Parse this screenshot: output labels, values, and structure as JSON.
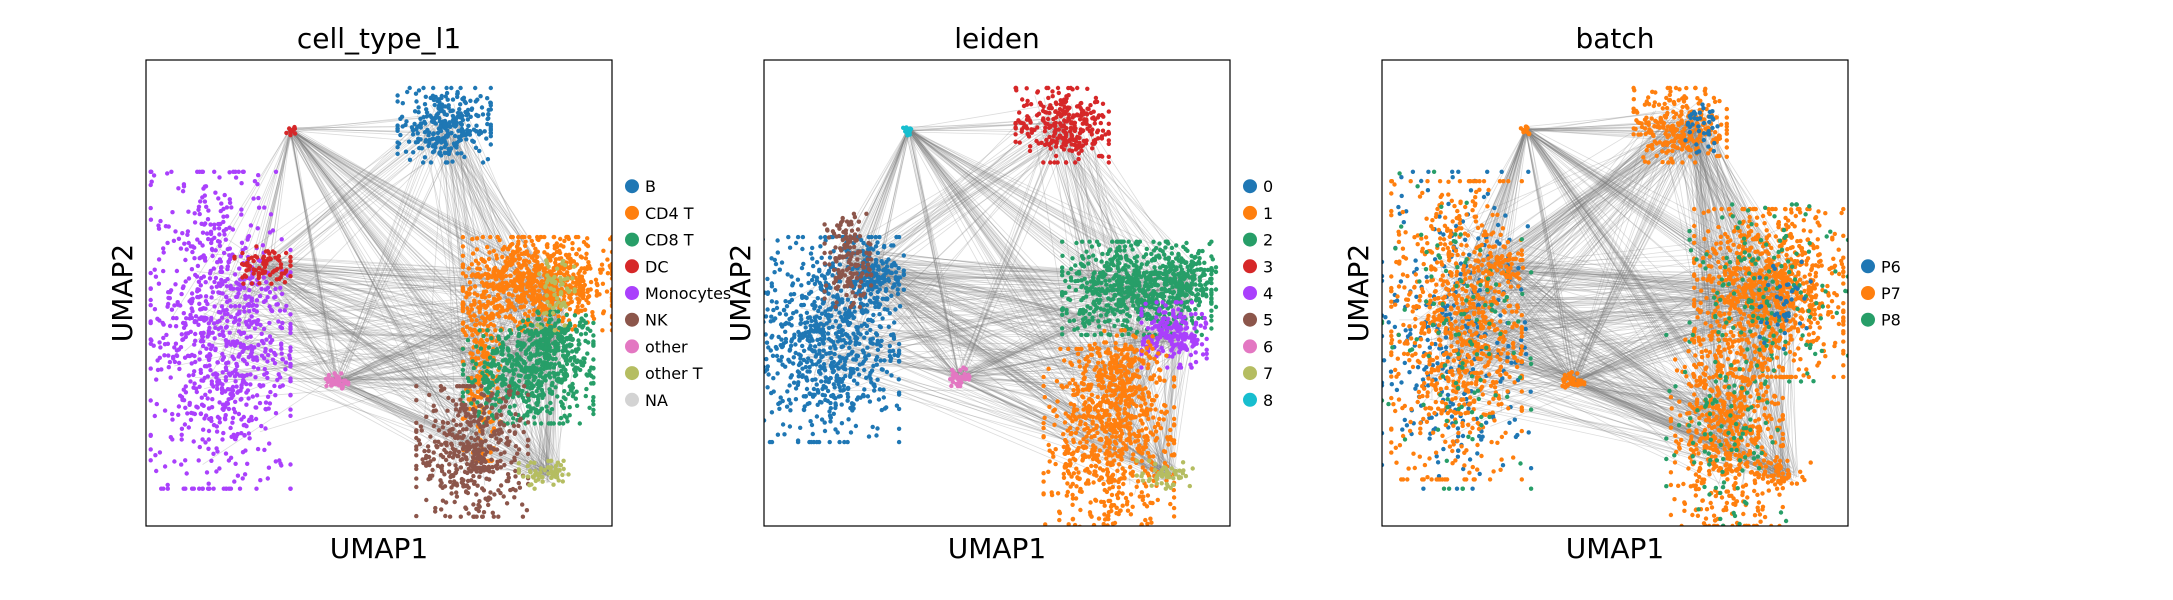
{
  "chart_data": [
    {
      "type": "scatter",
      "title": "cell_type_l1",
      "xlabel": "UMAP1",
      "ylabel": "UMAP2",
      "legend": [
        {
          "label": "B",
          "color": "#1f77b4"
        },
        {
          "label": "CD4 T",
          "color": "#ff7f0e"
        },
        {
          "label": "CD8 T",
          "color": "#279e68"
        },
        {
          "label": "DC",
          "color": "#d62728"
        },
        {
          "label": "Monocytes",
          "color": "#aa40fc"
        },
        {
          "label": "NK",
          "color": "#8c564b"
        },
        {
          "label": "other",
          "color": "#e377c2"
        },
        {
          "label": "other T",
          "color": "#b5bd61"
        },
        {
          "label": "NA",
          "color": "#d3d3d3"
        }
      ],
      "legend_placement": "right",
      "clusters": [
        {
          "label": "B",
          "color": "#1f77b4",
          "x": 0.64,
          "y": 0.86,
          "rx": 0.05,
          "ry": 0.04,
          "n": 300
        },
        {
          "label": "Monocytes",
          "color": "#aa40fc",
          "x": 0.16,
          "y": 0.42,
          "rx": 0.075,
          "ry": 0.17,
          "n": 900
        },
        {
          "label": "DC",
          "color": "#d62728",
          "x": 0.25,
          "y": 0.56,
          "rx": 0.03,
          "ry": 0.02,
          "n": 80
        },
        {
          "label": "DC",
          "color": "#d62728",
          "x": 0.31,
          "y": 0.85,
          "rx": 0.006,
          "ry": 0.006,
          "n": 12
        },
        {
          "label": "other",
          "color": "#e377c2",
          "x": 0.41,
          "y": 0.31,
          "rx": 0.012,
          "ry": 0.01,
          "n": 40
        },
        {
          "label": "CD4 T",
          "color": "#ff7f0e",
          "x": 0.84,
          "y": 0.52,
          "rx": 0.08,
          "ry": 0.05,
          "n": 800
        },
        {
          "label": "CD4 T",
          "color": "#ff7f0e",
          "x": 0.72,
          "y": 0.34,
          "rx": 0.02,
          "ry": 0.1,
          "n": 200
        },
        {
          "label": "CD8 T",
          "color": "#279e68",
          "x": 0.82,
          "y": 0.32,
          "rx": 0.07,
          "ry": 0.05,
          "n": 500
        },
        {
          "label": "CD8 T",
          "color": "#279e68",
          "x": 0.88,
          "y": 0.4,
          "rx": 0.04,
          "ry": 0.03,
          "n": 200
        },
        {
          "label": "NK",
          "color": "#8c564b",
          "x": 0.7,
          "y": 0.16,
          "rx": 0.06,
          "ry": 0.07,
          "n": 450
        },
        {
          "label": "other T",
          "color": "#b5bd61",
          "x": 0.86,
          "y": 0.11,
          "rx": 0.03,
          "ry": 0.015,
          "n": 60
        },
        {
          "label": "other T",
          "color": "#b5bd61",
          "x": 0.88,
          "y": 0.5,
          "rx": 0.02,
          "ry": 0.04,
          "n": 60
        }
      ]
    },
    {
      "type": "scatter",
      "title": "leiden",
      "xlabel": "UMAP1",
      "ylabel": "UMAP2",
      "legend": [
        {
          "label": "0",
          "color": "#1f77b4"
        },
        {
          "label": "1",
          "color": "#ff7f0e"
        },
        {
          "label": "2",
          "color": "#279e68"
        },
        {
          "label": "3",
          "color": "#d62728"
        },
        {
          "label": "4",
          "color": "#aa40fc"
        },
        {
          "label": "5",
          "color": "#8c564b"
        },
        {
          "label": "6",
          "color": "#e377c2"
        },
        {
          "label": "7",
          "color": "#b5bd61"
        },
        {
          "label": "8",
          "color": "#17becf"
        }
      ],
      "legend_placement": "right",
      "clusters": [
        {
          "label": "0",
          "color": "#1f77b4",
          "x": 0.14,
          "y": 0.4,
          "rx": 0.075,
          "ry": 0.11,
          "n": 800
        },
        {
          "label": "0",
          "color": "#1f77b4",
          "x": 0.24,
          "y": 0.54,
          "rx": 0.03,
          "ry": 0.04,
          "n": 150
        },
        {
          "label": "5",
          "color": "#8c564b",
          "x": 0.18,
          "y": 0.57,
          "rx": 0.025,
          "ry": 0.05,
          "n": 150
        },
        {
          "label": "3",
          "color": "#d62728",
          "x": 0.64,
          "y": 0.86,
          "rx": 0.05,
          "ry": 0.04,
          "n": 300
        },
        {
          "label": "8",
          "color": "#17becf",
          "x": 0.31,
          "y": 0.85,
          "rx": 0.006,
          "ry": 0.006,
          "n": 12
        },
        {
          "label": "6",
          "color": "#e377c2",
          "x": 0.42,
          "y": 0.32,
          "rx": 0.012,
          "ry": 0.01,
          "n": 40
        },
        {
          "label": "2",
          "color": "#279e68",
          "x": 0.8,
          "y": 0.51,
          "rx": 0.08,
          "ry": 0.05,
          "n": 700
        },
        {
          "label": "2",
          "color": "#279e68",
          "x": 0.91,
          "y": 0.53,
          "rx": 0.03,
          "ry": 0.03,
          "n": 120
        },
        {
          "label": "4",
          "color": "#aa40fc",
          "x": 0.88,
          "y": 0.41,
          "rx": 0.035,
          "ry": 0.035,
          "n": 200
        },
        {
          "label": "1",
          "color": "#ff7f0e",
          "x": 0.74,
          "y": 0.18,
          "rx": 0.07,
          "ry": 0.1,
          "n": 700
        },
        {
          "label": "1",
          "color": "#ff7f0e",
          "x": 0.77,
          "y": 0.32,
          "rx": 0.04,
          "ry": 0.05,
          "n": 200
        },
        {
          "label": "7",
          "color": "#b5bd61",
          "x": 0.86,
          "y": 0.11,
          "rx": 0.03,
          "ry": 0.015,
          "n": 50
        }
      ]
    },
    {
      "type": "scatter",
      "title": "batch",
      "xlabel": "UMAP1",
      "ylabel": "UMAP2",
      "legend": [
        {
          "label": "P6",
          "color": "#1f77b4"
        },
        {
          "label": "P7",
          "color": "#ff7f0e"
        },
        {
          "label": "P8",
          "color": "#279e68"
        }
      ],
      "legend_placement": "right",
      "clusters": [
        {
          "label": "P6",
          "color": "#1f77b4",
          "x": 0.16,
          "y": 0.42,
          "rx": 0.08,
          "ry": 0.17,
          "n": 300
        },
        {
          "label": "P7",
          "color": "#ff7f0e",
          "x": 0.16,
          "y": 0.42,
          "rx": 0.07,
          "ry": 0.16,
          "n": 800
        },
        {
          "label": "P8",
          "color": "#279e68",
          "x": 0.16,
          "y": 0.42,
          "rx": 0.08,
          "ry": 0.17,
          "n": 120
        },
        {
          "label": "P7",
          "color": "#ff7f0e",
          "x": 0.25,
          "y": 0.56,
          "rx": 0.03,
          "ry": 0.02,
          "n": 60
        },
        {
          "label": "P7",
          "color": "#ff7f0e",
          "x": 0.64,
          "y": 0.86,
          "rx": 0.05,
          "ry": 0.04,
          "n": 280
        },
        {
          "label": "P6",
          "color": "#1f77b4",
          "x": 0.68,
          "y": 0.86,
          "rx": 0.02,
          "ry": 0.03,
          "n": 40
        },
        {
          "label": "P7",
          "color": "#ff7f0e",
          "x": 0.31,
          "y": 0.85,
          "rx": 0.006,
          "ry": 0.006,
          "n": 12
        },
        {
          "label": "P7",
          "color": "#ff7f0e",
          "x": 0.41,
          "y": 0.31,
          "rx": 0.012,
          "ry": 0.01,
          "n": 40
        },
        {
          "label": "P7",
          "color": "#ff7f0e",
          "x": 0.83,
          "y": 0.5,
          "rx": 0.08,
          "ry": 0.09,
          "n": 900
        },
        {
          "label": "P8",
          "color": "#279e68",
          "x": 0.83,
          "y": 0.5,
          "rx": 0.085,
          "ry": 0.095,
          "n": 150
        },
        {
          "label": "P7",
          "color": "#ff7f0e",
          "x": 0.74,
          "y": 0.2,
          "rx": 0.06,
          "ry": 0.1,
          "n": 600
        },
        {
          "label": "P8",
          "color": "#279e68",
          "x": 0.74,
          "y": 0.2,
          "rx": 0.065,
          "ry": 0.105,
          "n": 100
        },
        {
          "label": "P6",
          "color": "#1f77b4",
          "x": 0.86,
          "y": 0.48,
          "rx": 0.03,
          "ry": 0.05,
          "n": 40
        },
        {
          "label": "P7",
          "color": "#ff7f0e",
          "x": 0.86,
          "y": 0.11,
          "rx": 0.03,
          "ry": 0.015,
          "n": 50
        }
      ]
    }
  ]
}
